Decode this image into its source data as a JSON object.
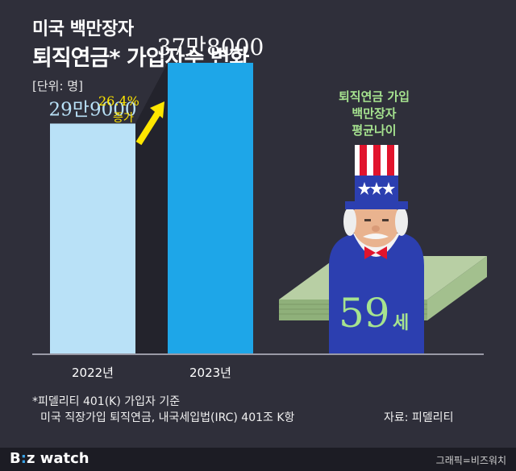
{
  "header": {
    "title_line1": "미국 백만장자",
    "title_line2": "퇴직연금* 가입자수 변화",
    "unit": "[단위: 명]"
  },
  "increase": {
    "percent": "26.4%",
    "label": "증가"
  },
  "callout": {
    "line1": "퇴직연금 가입",
    "line2": "백만장자",
    "line3": "평균나이",
    "age_value": "59",
    "age_unit": "세"
  },
  "footnotes": {
    "line1": "*피델리티 401(K) 가입자 기준",
    "line2": "미국 직장가입 퇴직연금, 내국세입법(IRC) 401조 K항",
    "source": "자료: 피델리티"
  },
  "footer": {
    "logo_b": "B",
    "logo_colon": ":",
    "logo_z": "z",
    "logo_watch": " watch",
    "credit": "그래픽=비즈워치"
  },
  "colors": {
    "background": "#2f2f3a",
    "bar_2022": "#b9e1f7",
    "bar_2023": "#1ea6e8",
    "arrow": "#ffe600",
    "accent_green": "#a6e38f"
  },
  "chart_data": {
    "type": "bar",
    "categories": [
      "2022년",
      "2023년"
    ],
    "values": [
      299000,
      378000
    ],
    "value_labels": [
      "29만9000",
      "37만8000"
    ],
    "ylim": [
      0,
      400000
    ],
    "grid": false,
    "legend": "none"
  }
}
